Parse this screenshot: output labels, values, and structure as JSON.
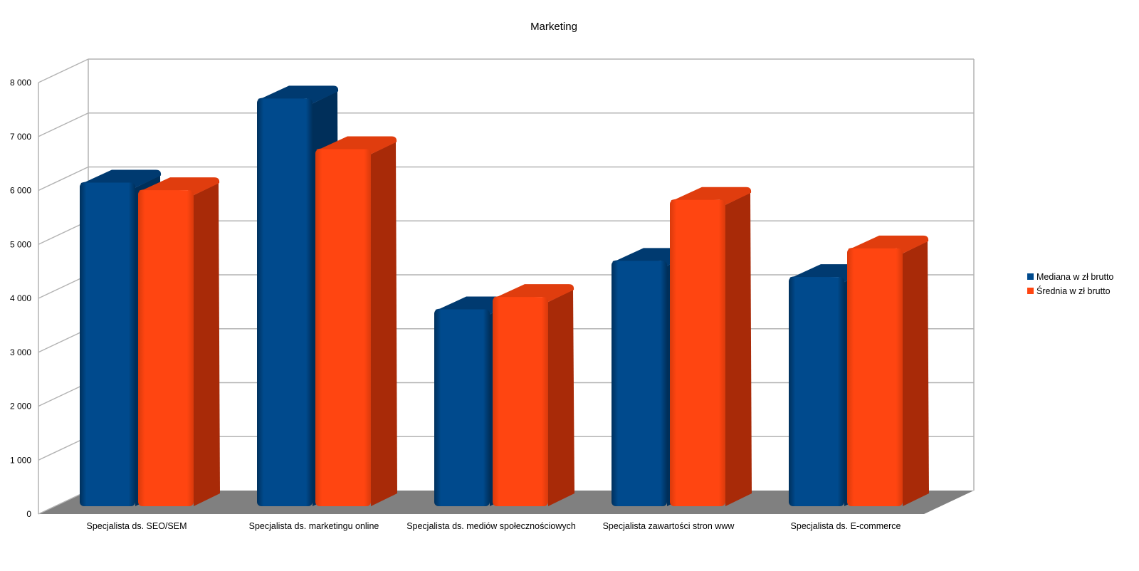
{
  "chart_data": {
    "type": "bar",
    "title": "Marketing",
    "categories": [
      "Specjalista ds. SEO/SEM",
      "Specjalista ds. marketingu online",
      "Specjalista ds. mediów społecznościowych",
      "Specjalista zawartości stron www",
      "Specjalista ds. E-commerce"
    ],
    "series": [
      {
        "name": "Mediana w zł brutto",
        "color": "#004a8d",
        "values": [
          6000,
          7560,
          3650,
          4550,
          4250
        ]
      },
      {
        "name": "Średnia w zł brutto",
        "color": "#ff4511",
        "values": [
          5860,
          6620,
          3880,
          5680,
          4780
        ]
      }
    ],
    "yticks": [
      "0",
      "1 000",
      "2 000",
      "3 000",
      "4 000",
      "5 000",
      "6 000",
      "7 000",
      "8 000"
    ],
    "ylim": [
      0,
      8000
    ],
    "xlabel": "",
    "ylabel": "",
    "grid": true,
    "legend_position": "right"
  }
}
